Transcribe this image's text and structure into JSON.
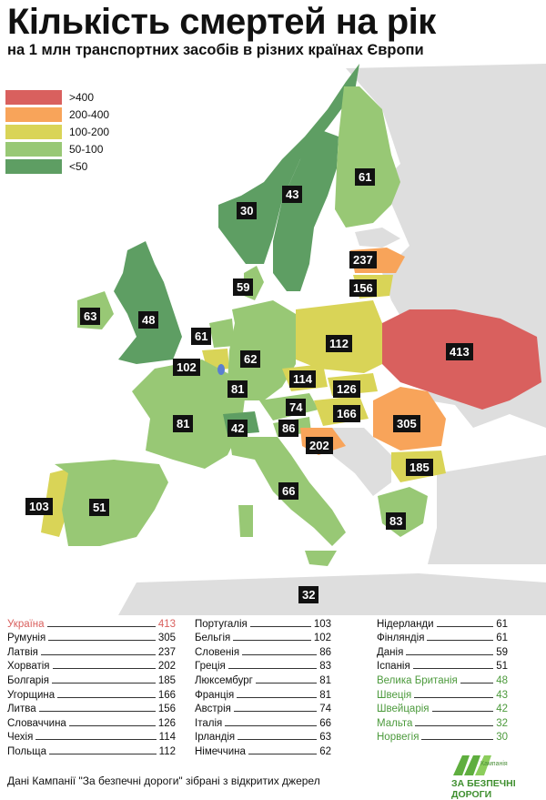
{
  "title": "Кількість смертей на рік",
  "subtitle": "на 1 млн транспортних засобів в різних країнах Європи",
  "colors": {
    "over400": "#d9605e",
    "r200_400": "#f8a45a",
    "r100_200": "#d9d457",
    "r50_100": "#98c875",
    "under50": "#5e9e63",
    "noData": "#dedede",
    "sea": "#ffffff"
  },
  "legend": [
    {
      "label": ">400",
      "color": "#d9605e"
    },
    {
      "label": "200-400",
      "color": "#f8a45a"
    },
    {
      "label": "100-200",
      "color": "#d9d457"
    },
    {
      "label": "50-100",
      "color": "#98c875"
    },
    {
      "label": "<50",
      "color": "#5e9e63"
    }
  ],
  "map_labels": [
    "30",
    "43",
    "61",
    "237",
    "59",
    "156",
    "63",
    "48",
    "61",
    "62",
    "112",
    "413",
    "102",
    "81",
    "114",
    "126",
    "74",
    "81",
    "42",
    "86",
    "166",
    "305",
    "202",
    "185",
    "66",
    "103",
    "51",
    "83",
    "32"
  ],
  "table": {
    "col1": [
      {
        "name": "Україна",
        "value": "413",
        "highlight": "red"
      },
      {
        "name": "Румунія",
        "value": "305",
        "highlight": ""
      },
      {
        "name": "Латвія",
        "value": "237",
        "highlight": ""
      },
      {
        "name": "Хорватія",
        "value": "202",
        "highlight": ""
      },
      {
        "name": "Болгарія",
        "value": "185",
        "highlight": ""
      },
      {
        "name": "Угорщина",
        "value": "166",
        "highlight": ""
      },
      {
        "name": "Литва",
        "value": "156",
        "highlight": ""
      },
      {
        "name": "Словаччина",
        "value": "126",
        "highlight": ""
      },
      {
        "name": "Чехія",
        "value": "114",
        "highlight": ""
      },
      {
        "name": "Польща",
        "value": "112",
        "highlight": ""
      }
    ],
    "col2": [
      {
        "name": "Португалія",
        "value": "103",
        "highlight": ""
      },
      {
        "name": "Бельгія",
        "value": "102",
        "highlight": ""
      },
      {
        "name": "Словенія",
        "value": "86",
        "highlight": ""
      },
      {
        "name": "Греція",
        "value": "83",
        "highlight": ""
      },
      {
        "name": "Люксембург",
        "value": "81",
        "highlight": ""
      },
      {
        "name": "Франція",
        "value": "81",
        "highlight": ""
      },
      {
        "name": "Австрія",
        "value": "74",
        "highlight": ""
      },
      {
        "name": "Італія",
        "value": "66",
        "highlight": ""
      },
      {
        "name": "Ірландія",
        "value": "63",
        "highlight": ""
      },
      {
        "name": "Німеччина",
        "value": "62",
        "highlight": ""
      }
    ],
    "col3": [
      {
        "name": "Нідерланди",
        "value": "61",
        "highlight": ""
      },
      {
        "name": "Фінляндія",
        "value": "61",
        "highlight": ""
      },
      {
        "name": "Данія",
        "value": "59",
        "highlight": ""
      },
      {
        "name": "Іспанія",
        "value": "51",
        "highlight": ""
      },
      {
        "name": "Велика Британія",
        "value": "48",
        "highlight": "green"
      },
      {
        "name": "Швеція",
        "value": "43",
        "highlight": "green"
      },
      {
        "name": "Швейцарія",
        "value": "42",
        "highlight": "green"
      },
      {
        "name": "Мальта",
        "value": "32",
        "highlight": "green"
      },
      {
        "name": "Норвегія",
        "value": "30",
        "highlight": "green"
      }
    ]
  },
  "footer": "Дані Кампанії \"За безпечні дороги\" зібрані з відкритих джерел",
  "logo": {
    "caption": "Кампанія",
    "name": "ЗА БЕЗПЕЧНІ ДОРОГИ",
    "icon": "road-logo-icon"
  }
}
